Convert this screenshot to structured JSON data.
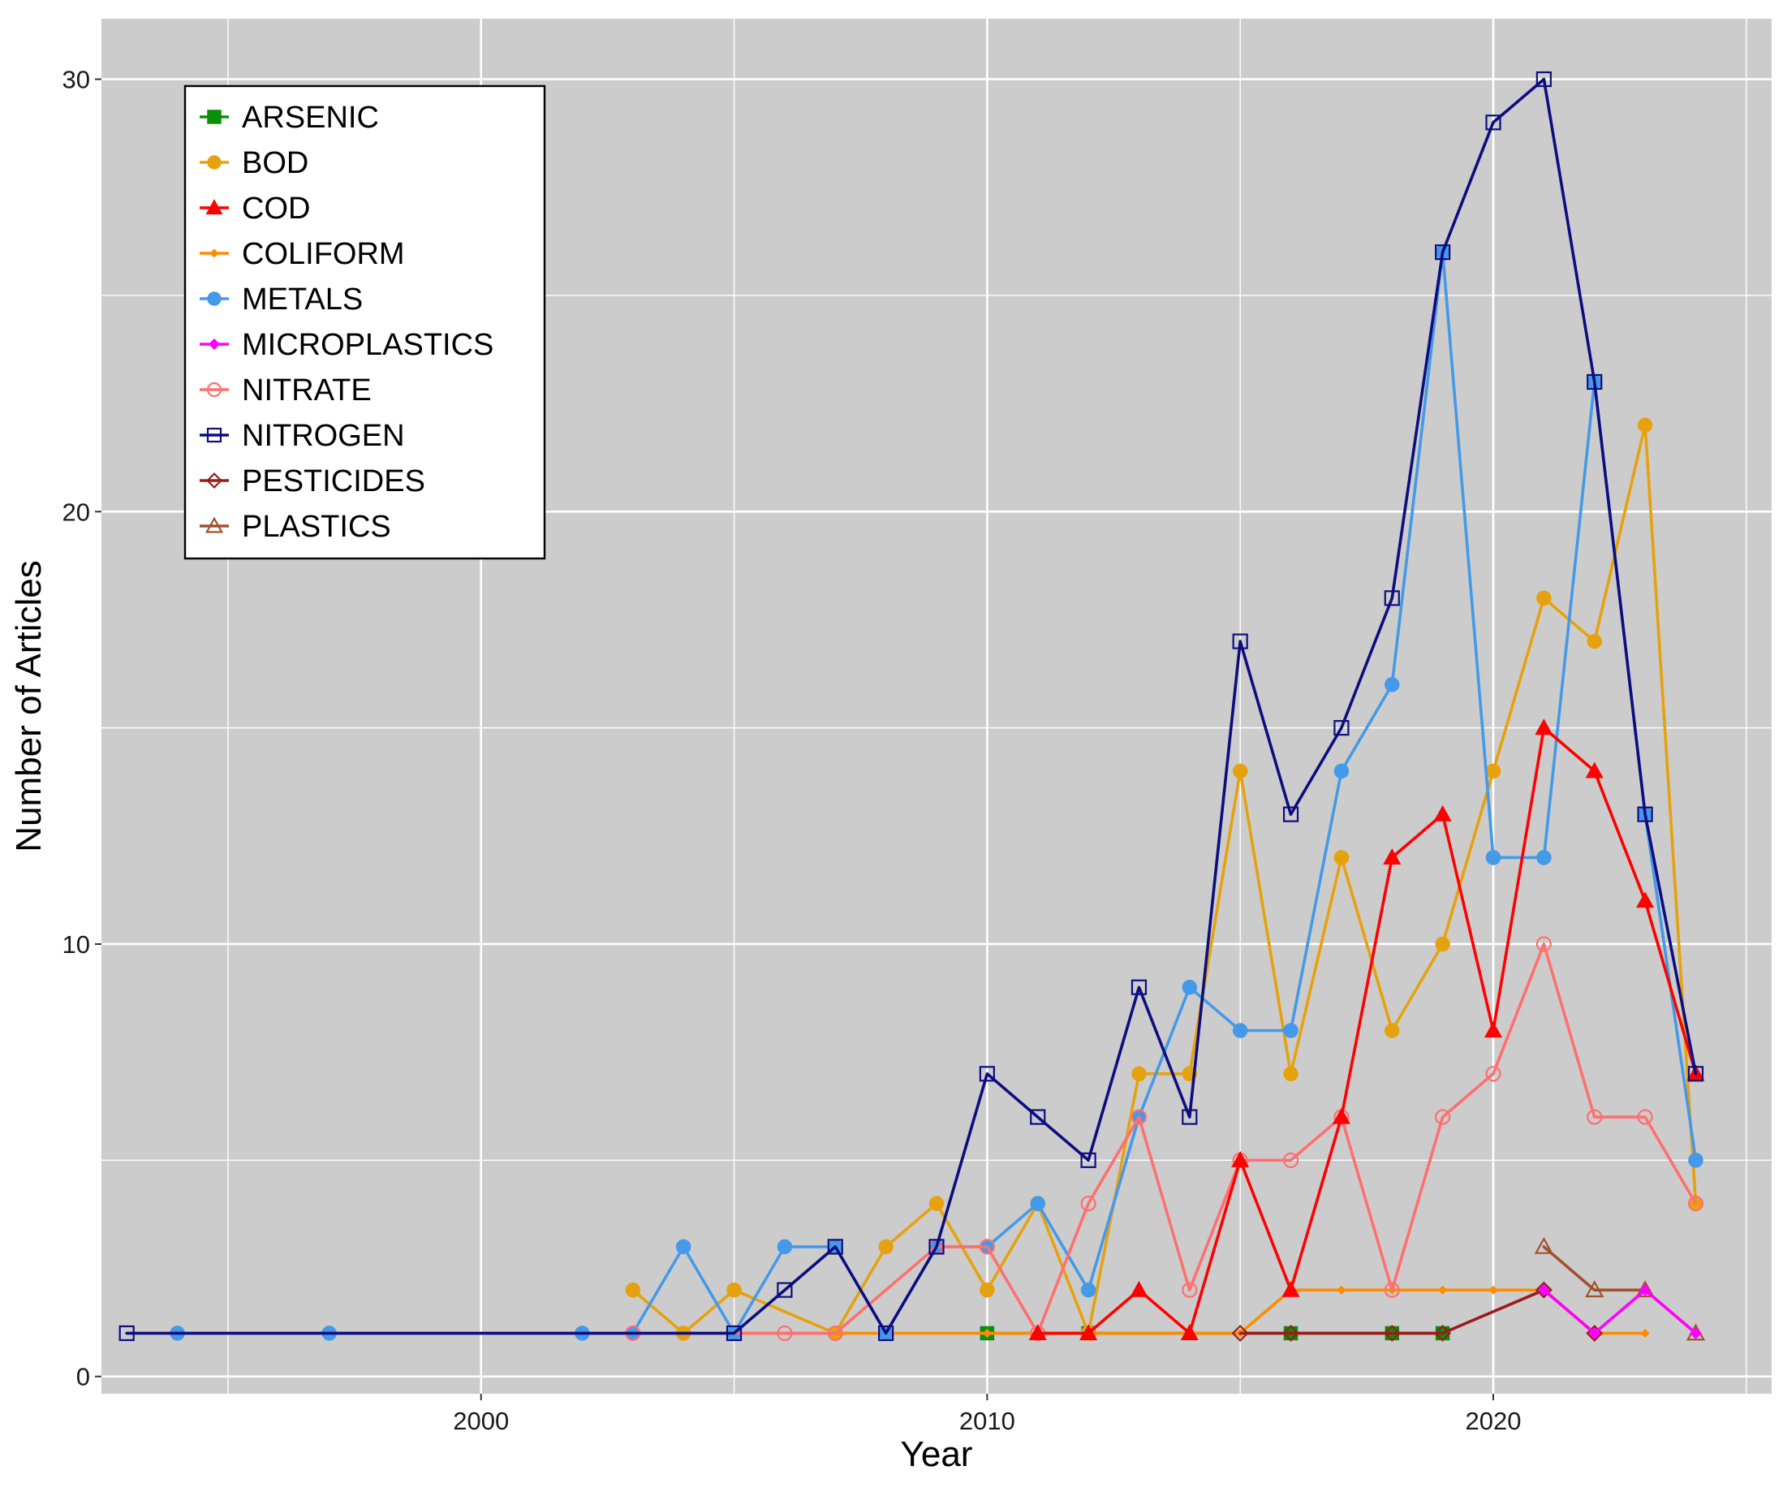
{
  "chart_data": {
    "type": "line",
    "title": "",
    "xlabel": "Year",
    "ylabel": "Number of Articles",
    "xlim": [
      1992.5,
      2025.5
    ],
    "ylim": [
      -0.4,
      31.4
    ],
    "x_ticks": [
      2000,
      2010,
      2020
    ],
    "x_tick_labels": [
      "2000",
      "2010",
      "2020"
    ],
    "y_ticks": [
      0,
      10,
      20,
      30
    ],
    "y_tick_labels": [
      "0",
      "10",
      "20",
      "30"
    ],
    "grid": true,
    "background": "#cccccc",
    "legend_position": "top-left",
    "series": [
      {
        "name": "ARSENIC",
        "color": "#0a8f0a",
        "marker": "square-filled",
        "points": [
          [
            2010,
            1
          ],
          [
            2012,
            1
          ],
          [
            2016,
            1
          ],
          [
            2018,
            1
          ],
          [
            2019,
            1
          ]
        ]
      },
      {
        "name": "BOD",
        "color": "#e6a20e",
        "marker": "circle-filled",
        "points": [
          [
            2003,
            2
          ],
          [
            2004,
            1
          ],
          [
            2005,
            2
          ],
          [
            2007,
            1
          ],
          [
            2008,
            3
          ],
          [
            2009,
            4
          ],
          [
            2010,
            2
          ],
          [
            2011,
            4
          ],
          [
            2012,
            1
          ],
          [
            2013,
            7
          ],
          [
            2014,
            7
          ],
          [
            2015,
            14
          ],
          [
            2016,
            7
          ],
          [
            2017,
            12
          ],
          [
            2018,
            8
          ],
          [
            2019,
            10
          ],
          [
            2020,
            14
          ],
          [
            2021,
            18
          ],
          [
            2022,
            17
          ],
          [
            2023,
            22
          ],
          [
            2024,
            4
          ]
        ]
      },
      {
        "name": "COD",
        "color": "#ff0000",
        "marker": "triangle-filled",
        "points": [
          [
            2011,
            1
          ],
          [
            2012,
            1
          ],
          [
            2013,
            2
          ],
          [
            2014,
            1
          ],
          [
            2015,
            5
          ],
          [
            2016,
            2
          ],
          [
            2017,
            6
          ],
          [
            2018,
            12
          ],
          [
            2019,
            13
          ],
          [
            2020,
            8
          ],
          [
            2021,
            15
          ],
          [
            2022,
            14
          ],
          [
            2023,
            11
          ],
          [
            2024,
            7
          ]
        ]
      },
      {
        "name": "COLIFORM",
        "color": "#ff8c00",
        "marker": "diamond-filled",
        "points": [
          [
            2005,
            1
          ],
          [
            2010,
            1
          ],
          [
            2014,
            1
          ],
          [
            2015,
            1
          ],
          [
            2016,
            2
          ],
          [
            2017,
            2
          ],
          [
            2018,
            2
          ],
          [
            2019,
            2
          ],
          [
            2020,
            2
          ],
          [
            2021,
            2
          ],
          [
            2022,
            1
          ],
          [
            2023,
            1
          ]
        ]
      },
      {
        "name": "METALS",
        "color": "#4499e8",
        "marker": "circle-filled",
        "points": [
          [
            1994,
            1
          ],
          [
            1997,
            1
          ],
          [
            2002,
            1
          ],
          [
            2003,
            1
          ],
          [
            2004,
            3
          ],
          [
            2005,
            1
          ],
          [
            2006,
            3
          ],
          [
            2007,
            3
          ],
          [
            2008,
            1
          ],
          [
            2009,
            3
          ],
          [
            2010,
            3
          ],
          [
            2011,
            4
          ],
          [
            2012,
            2
          ],
          [
            2013,
            6
          ],
          [
            2014,
            9
          ],
          [
            2015,
            8
          ],
          [
            2016,
            8
          ],
          [
            2017,
            14
          ],
          [
            2018,
            16
          ],
          [
            2019,
            26
          ],
          [
            2020,
            12
          ],
          [
            2021,
            12
          ],
          [
            2022,
            23
          ],
          [
            2023,
            13
          ],
          [
            2024,
            5
          ]
        ]
      },
      {
        "name": "MICROPLASTICS",
        "color": "#ff00ff",
        "marker": "diamond-filled",
        "points": [
          [
            2021,
            2
          ],
          [
            2022,
            1
          ],
          [
            2023,
            2
          ],
          [
            2024,
            1
          ]
        ]
      },
      {
        "name": "NITRATE",
        "color": "#ff6f6f",
        "marker": "circle-open",
        "points": [
          [
            2003,
            1
          ],
          [
            2006,
            1
          ],
          [
            2007,
            1
          ],
          [
            2009,
            3
          ],
          [
            2010,
            3
          ],
          [
            2011,
            1
          ],
          [
            2012,
            4
          ],
          [
            2013,
            6
          ],
          [
            2014,
            2
          ],
          [
            2015,
            5
          ],
          [
            2016,
            5
          ],
          [
            2017,
            6
          ],
          [
            2018,
            2
          ],
          [
            2019,
            6
          ],
          [
            2020,
            7
          ],
          [
            2021,
            10
          ],
          [
            2022,
            6
          ],
          [
            2023,
            6
          ],
          [
            2024,
            4
          ]
        ]
      },
      {
        "name": "NITROGEN",
        "color": "#0d0d80",
        "marker": "square-open",
        "points": [
          [
            1993,
            1
          ],
          [
            2005,
            1
          ],
          [
            2006,
            2
          ],
          [
            2007,
            3
          ],
          [
            2008,
            1
          ],
          [
            2009,
            3
          ],
          [
            2010,
            7
          ],
          [
            2011,
            6
          ],
          [
            2012,
            5
          ],
          [
            2013,
            9
          ],
          [
            2014,
            6
          ],
          [
            2015,
            17
          ],
          [
            2016,
            13
          ],
          [
            2017,
            15
          ],
          [
            2018,
            18
          ],
          [
            2019,
            26
          ],
          [
            2020,
            29
          ],
          [
            2021,
            30
          ],
          [
            2022,
            23
          ],
          [
            2023,
            13
          ],
          [
            2024,
            7
          ]
        ]
      },
      {
        "name": "PESTICIDES",
        "color": "#9b1c1c",
        "marker": "diamond-open",
        "points": [
          [
            2015,
            1
          ],
          [
            2016,
            1
          ],
          [
            2018,
            1
          ],
          [
            2019,
            1
          ],
          [
            2021,
            2
          ],
          [
            2022,
            1
          ]
        ]
      },
      {
        "name": "PLASTICS",
        "color": "#a0522d",
        "marker": "triangle-open",
        "points": [
          [
            2021,
            3
          ],
          [
            2022,
            2
          ],
          [
            2023,
            2
          ],
          [
            2024,
            1
          ]
        ]
      }
    ]
  }
}
